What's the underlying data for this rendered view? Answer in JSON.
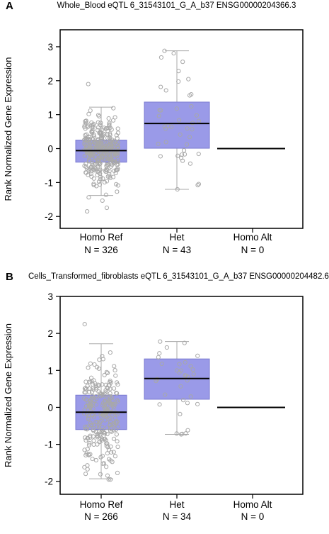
{
  "panels": [
    {
      "letter": "A",
      "title": "Whole_Blood eQTL 6_31543101_G_A_b37 ENSG00000204366.3",
      "ylabel": "Rank Normalized Gene Expression"
    },
    {
      "letter": "B",
      "title": "Cells_Transformed_fibroblasts eQTL 6_31543101_G_A_b37 ENSG00000204482.6",
      "ylabel": "Rank Normalized Gene Expression"
    }
  ],
  "colors": {
    "box_fill": "#9a9ae8",
    "box_edge": "#7a7ad0",
    "whisker": "#aaaaaa",
    "median": "#000000",
    "point": "#a8a8a8"
  },
  "chart_data": [
    {
      "type": "box",
      "title": "Whole_Blood eQTL 6_31543101_G_A_b37 ENSG00000204366.3",
      "ylabel": "Rank Normalized Gene Expression",
      "ylim": [
        -2.35,
        3.5
      ],
      "yticks": [
        -2,
        -1,
        0,
        1,
        2,
        3
      ],
      "categories": [
        "Homo Ref",
        "Het",
        "Homo Alt"
      ],
      "counts": [
        "N = 326",
        "N = 43",
        "N = 0"
      ],
      "groups": [
        {
          "name": "Homo Ref",
          "n": 326,
          "q1": -0.4,
          "median": -0.06,
          "q3": 0.25,
          "whisker_low": -1.38,
          "whisker_high": 1.22,
          "min": -1.85,
          "max": 1.9
        },
        {
          "name": "Het",
          "n": 43,
          "q1": 0.01,
          "median": 0.74,
          "q3": 1.37,
          "whisker_low": -1.2,
          "whisker_high": 2.88,
          "min": -1.2,
          "max": 2.88
        },
        {
          "name": "Homo Alt",
          "n": 0,
          "median": 0.0
        }
      ]
    },
    {
      "type": "box",
      "title": "Cells_Transformed_fibroblasts eQTL 6_31543101_G_A_b37 ENSG00000204482.6",
      "ylabel": "Rank Normalized Gene Expression",
      "ylim": [
        -2.35,
        3.0
      ],
      "yticks": [
        -2,
        -1,
        0,
        1,
        2,
        3
      ],
      "categories": [
        "Homo Ref",
        "Het",
        "Homo Alt"
      ],
      "counts": [
        "N = 266",
        "N = 34",
        "N = 0"
      ],
      "groups": [
        {
          "name": "Homo Ref",
          "n": 266,
          "q1": -0.6,
          "median": -0.13,
          "q3": 0.33,
          "whisker_low": -1.93,
          "whisker_high": 1.72,
          "min": -1.95,
          "max": 2.25
        },
        {
          "name": "Het",
          "n": 34,
          "q1": 0.22,
          "median": 0.78,
          "q3": 1.31,
          "whisker_low": -0.73,
          "whisker_high": 1.78,
          "min": -0.73,
          "max": 1.78
        },
        {
          "name": "Homo Alt",
          "n": 0,
          "median": 0.0
        }
      ]
    }
  ]
}
